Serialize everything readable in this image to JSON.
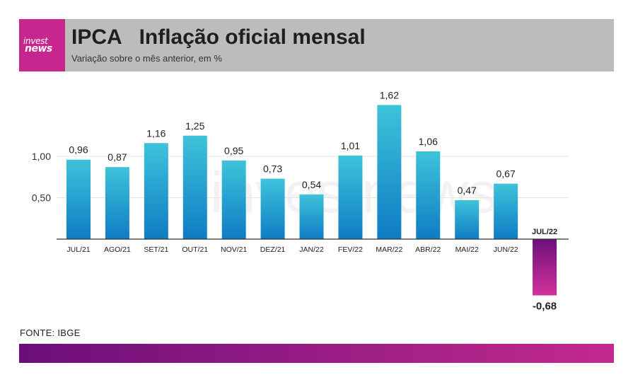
{
  "header": {
    "logo_line1": "invest",
    "logo_line2": "news",
    "title": "IPCA   Inflação oficial mensal",
    "subtitle": "Variação sobre o mês anterior, em %"
  },
  "watermark": "investnews",
  "footer": {
    "source": "FONTE: IBGE"
  },
  "chart_data": {
    "type": "bar",
    "title": "IPCA   Inflação oficial mensal",
    "subtitle": "Variação sobre o mês anterior, em %",
    "categories": [
      "JUL/21",
      "AGO/21",
      "SET/21",
      "OUT/21",
      "NOV/21",
      "DEZ/21",
      "JAN/22",
      "FEV/22",
      "MAR/22",
      "ABR/22",
      "MAI/22",
      "JUN/22",
      "JUL/22"
    ],
    "values": [
      0.96,
      0.87,
      1.16,
      1.25,
      0.95,
      0.73,
      0.54,
      1.01,
      1.62,
      1.06,
      0.47,
      0.67,
      -0.68
    ],
    "value_labels": [
      "0,96",
      "0,87",
      "1,16",
      "1,25",
      "0,95",
      "0,73",
      "0,54",
      "1,01",
      "1,62",
      "1,06",
      "0,47",
      "0,67",
      "-0,68"
    ],
    "ytick_values": [
      0.5,
      1.0
    ],
    "ytick_labels": [
      "0,50",
      "1,00"
    ],
    "ylim": [
      -0.7,
      1.7
    ],
    "grid": true,
    "colors": {
      "positive_top": "#3ec3da",
      "positive_bottom": "#0e7cc4",
      "negative_top": "#6d0f7c",
      "negative_bottom": "#d3329b",
      "grid": "#e6e6e6",
      "axis": "#333333"
    }
  }
}
